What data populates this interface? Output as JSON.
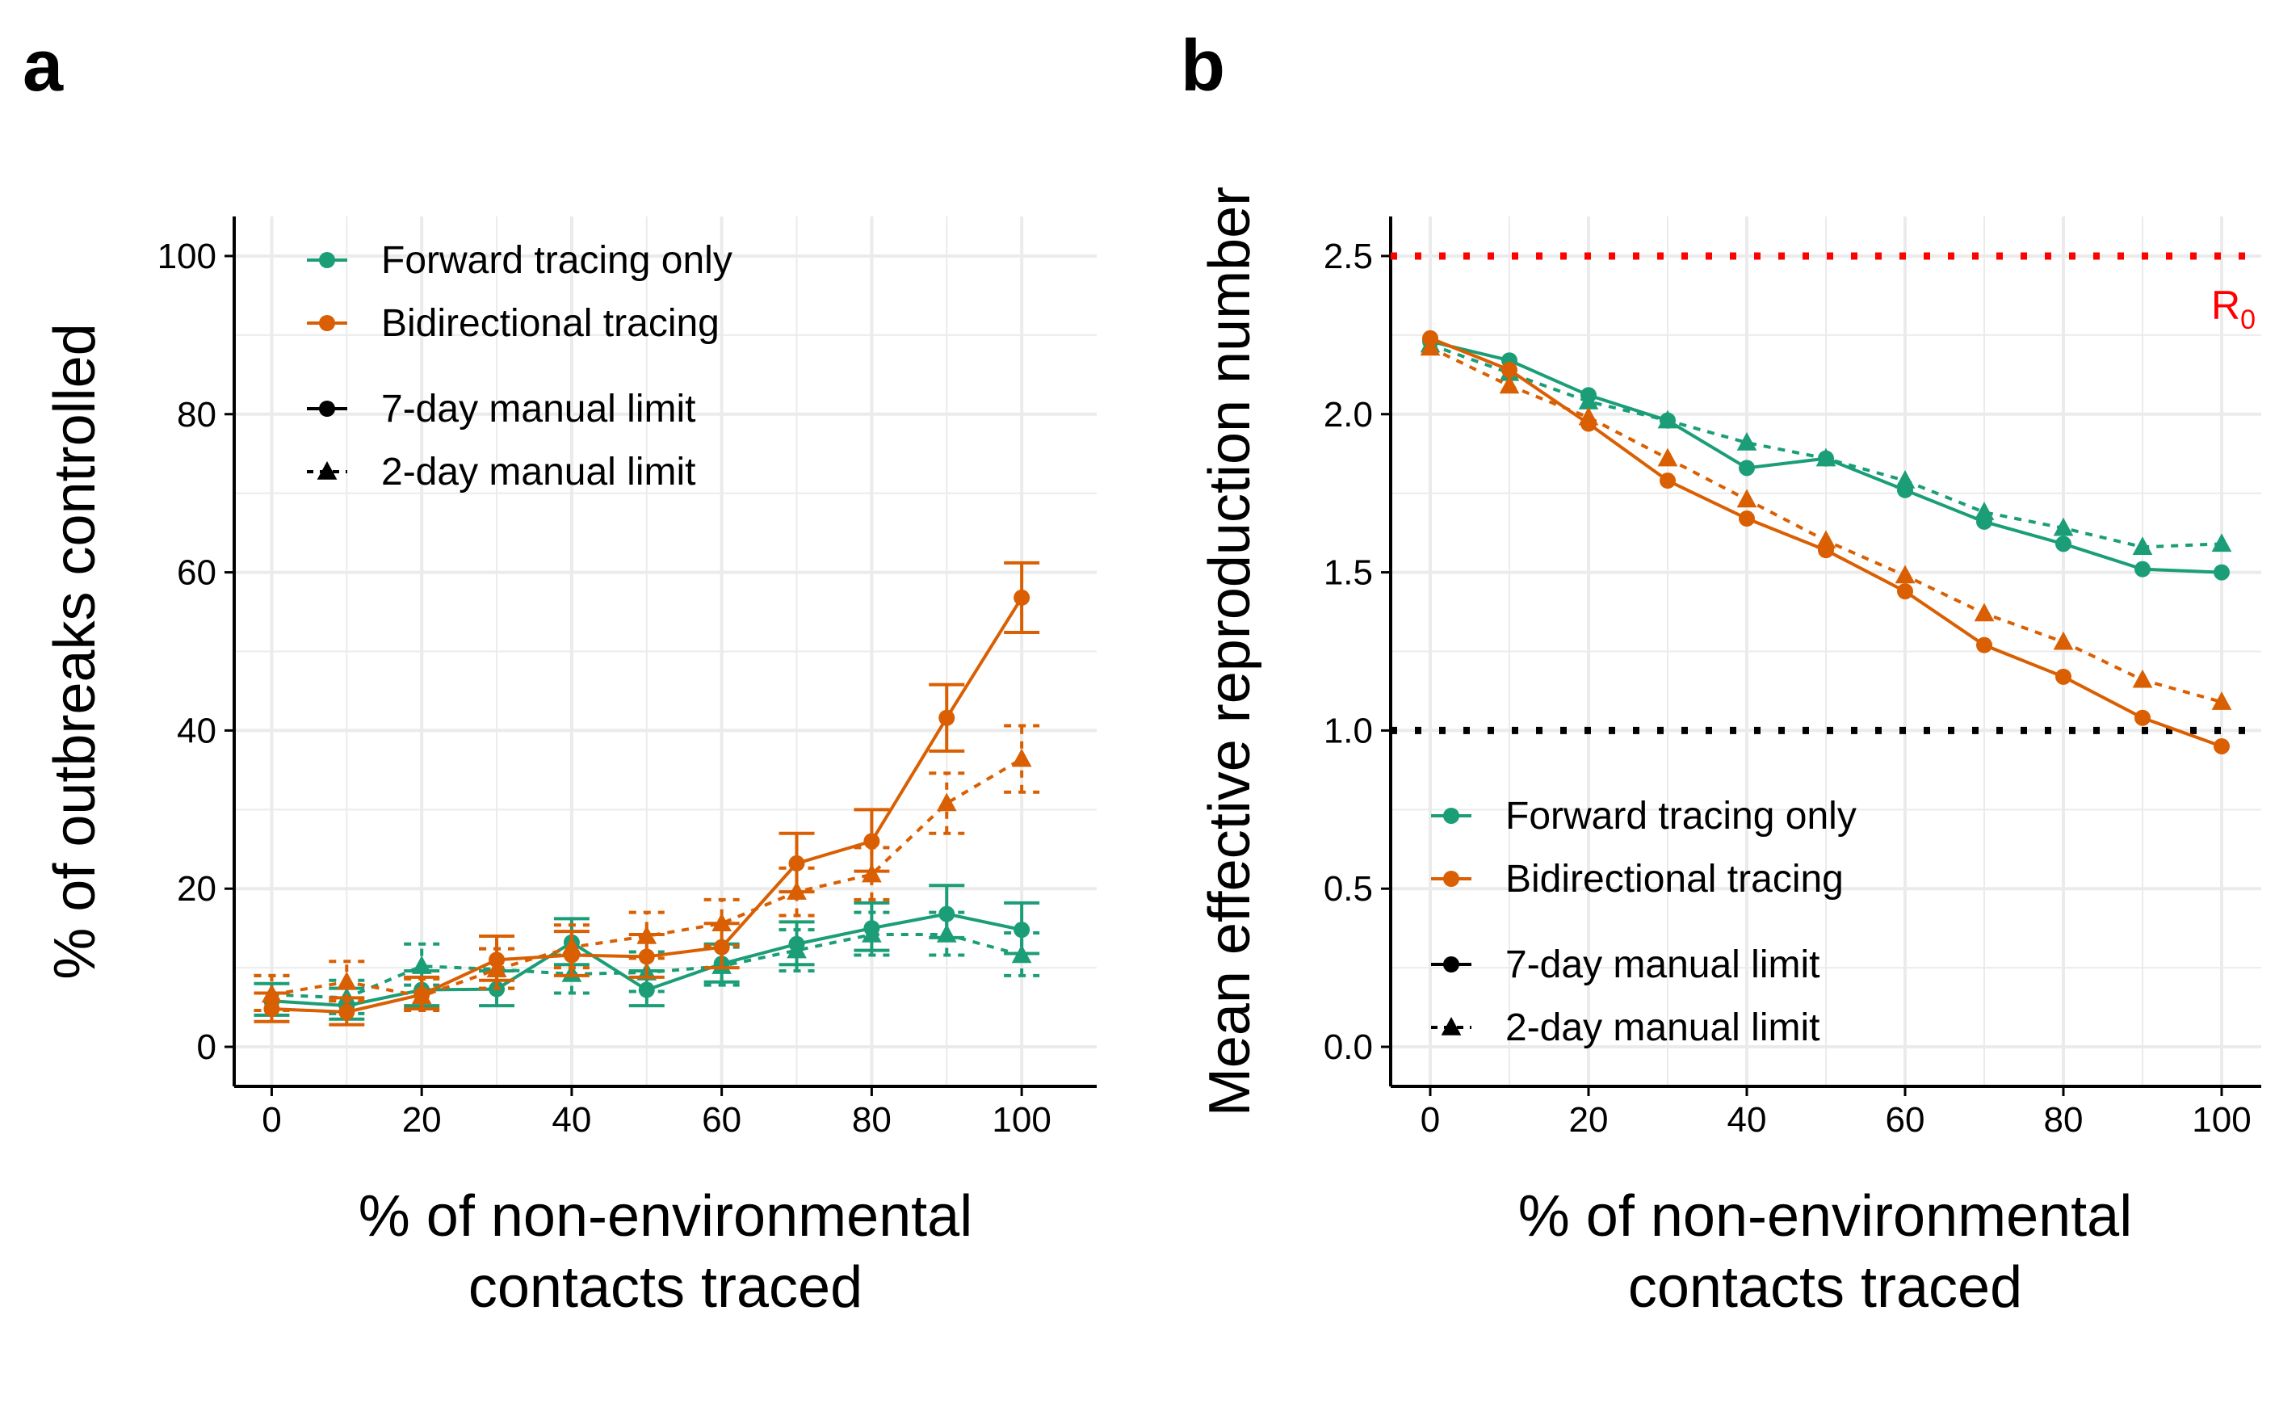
{
  "colors": {
    "forward": "#1b9e77",
    "bidirectional": "#d95f02",
    "r0_line": "#ff0000",
    "threshold_line": "#000000",
    "grid": "#ebebeb",
    "axis": "#000000"
  },
  "chart_data": [
    {
      "panel_label": "a",
      "type": "line",
      "title": "",
      "xlabel": [
        "% of non-environmental",
        "contacts traced"
      ],
      "ylabel": "% of outbreaks controlled",
      "xlim": [
        -5,
        110
      ],
      "ylim": [
        -5,
        105
      ],
      "xticks": [
        0,
        20,
        40,
        60,
        80,
        100
      ],
      "yticks": [
        0,
        20,
        40,
        60,
        80,
        100
      ],
      "xtick_labels": [
        "0",
        "20",
        "40",
        "60",
        "80",
        "100"
      ],
      "ytick_labels": [
        "0",
        "20",
        "40",
        "60",
        "80",
        "100"
      ],
      "grid": true,
      "error_bars": true,
      "legend": {
        "position": "top-left",
        "color_entries": [
          {
            "label": "Forward tracing only",
            "color_key": "forward"
          },
          {
            "label": "Bidirectional tracing",
            "color_key": "bidirectional"
          }
        ],
        "style_entries": [
          {
            "label": "7-day manual limit",
            "marker": "circle",
            "dash": "solid"
          },
          {
            "label": "2-day manual limit",
            "marker": "triangle",
            "dash": "dotted"
          }
        ]
      },
      "x": [
        0,
        10,
        20,
        30,
        40,
        50,
        60,
        70,
        80,
        90,
        100
      ],
      "series": [
        {
          "color_key": "forward",
          "manual_limit": "7-day",
          "marker": "circle",
          "dash": "solid",
          "values": [
            5.8,
            5.2,
            7.2,
            7.3,
            13.2,
            7.2,
            10.5,
            13.0,
            15.0,
            16.8,
            14.8
          ],
          "err_low": [
            4.0,
            3.5,
            5.2,
            5.2,
            10.4,
            5.2,
            8.2,
            10.4,
            12.2,
            13.8,
            11.8
          ],
          "err_high": [
            8.0,
            7.4,
            9.6,
            9.6,
            16.2,
            9.6,
            13.0,
            15.8,
            18.2,
            20.4,
            18.2
          ]
        },
        {
          "color_key": "forward",
          "manual_limit": "2-day",
          "marker": "triangle",
          "dash": "dotted",
          "values": [
            6.6,
            6.2,
            10.2,
            9.8,
            9.2,
            9.4,
            10.2,
            12.2,
            14.2,
            14.2,
            11.6
          ],
          "err_low": [
            4.6,
            4.2,
            7.8,
            7.4,
            6.8,
            7.0,
            7.8,
            9.6,
            11.6,
            11.6,
            9.0
          ],
          "err_high": [
            9.0,
            8.4,
            13.0,
            12.4,
            11.6,
            12.0,
            12.6,
            14.8,
            17.0,
            17.0,
            14.4
          ]
        },
        {
          "color_key": "bidirectional",
          "manual_limit": "7-day",
          "marker": "circle",
          "dash": "solid",
          "values": [
            4.8,
            4.4,
            6.6,
            11.0,
            11.6,
            11.4,
            12.6,
            23.2,
            26.0,
            41.6,
            56.8
          ],
          "err_low": [
            3.2,
            2.8,
            4.8,
            8.4,
            9.0,
            8.8,
            10.0,
            19.6,
            22.2,
            37.4,
            52.4
          ],
          "err_high": [
            6.8,
            6.2,
            8.8,
            14.0,
            14.6,
            14.2,
            15.6,
            27.0,
            30.0,
            45.8,
            61.2
          ]
        },
        {
          "color_key": "bidirectional",
          "manual_limit": "2-day",
          "marker": "triangle",
          "dash": "dotted",
          "values": [
            6.6,
            8.2,
            6.4,
            9.8,
            12.6,
            14.0,
            15.6,
            19.6,
            21.8,
            30.8,
            36.4
          ],
          "err_low": [
            4.6,
            5.8,
            4.6,
            7.4,
            10.0,
            11.2,
            12.8,
            16.6,
            18.6,
            27.0,
            32.2
          ],
          "err_high": [
            9.0,
            10.8,
            8.6,
            12.4,
            15.4,
            17.0,
            18.6,
            22.6,
            25.2,
            34.6,
            40.6
          ]
        }
      ]
    },
    {
      "panel_label": "b",
      "type": "line",
      "title": "",
      "xlabel": [
        "% of non-environmental",
        "contacts traced"
      ],
      "ylabel": "Mean effective reproduction number",
      "xlim": [
        -5,
        105
      ],
      "ylim": [
        -0.125,
        2.625
      ],
      "xticks": [
        0,
        20,
        40,
        60,
        80,
        100
      ],
      "yticks": [
        0.0,
        0.5,
        1.0,
        1.5,
        2.0,
        2.5
      ],
      "xtick_labels": [
        "0",
        "20",
        "40",
        "60",
        "80",
        "100"
      ],
      "ytick_labels": [
        "0.0",
        "0.5",
        "1.0",
        "1.5",
        "2.0",
        "2.5"
      ],
      "grid": true,
      "error_bars": false,
      "reference_lines": [
        {
          "y": 2.5,
          "color_key": "r0_line",
          "label": "R",
          "label_sub": "0",
          "dash": "dotted"
        },
        {
          "y": 1.0,
          "color_key": "threshold_line",
          "label": "",
          "dash": "dotted"
        }
      ],
      "legend": {
        "position": "bottom-left",
        "color_entries": [
          {
            "label": "Forward tracing only",
            "color_key": "forward"
          },
          {
            "label": "Bidirectional tracing",
            "color_key": "bidirectional"
          }
        ],
        "style_entries": [
          {
            "label": "7-day manual limit",
            "marker": "circle",
            "dash": "solid"
          },
          {
            "label": "2-day manual limit",
            "marker": "triangle",
            "dash": "dotted"
          }
        ]
      },
      "x": [
        0,
        10,
        20,
        30,
        40,
        50,
        60,
        70,
        80,
        90,
        100
      ],
      "series": [
        {
          "color_key": "forward",
          "manual_limit": "7-day",
          "marker": "circle",
          "dash": "solid",
          "values": [
            2.23,
            2.17,
            2.06,
            1.98,
            1.83,
            1.86,
            1.76,
            1.66,
            1.59,
            1.51,
            1.5
          ]
        },
        {
          "color_key": "forward",
          "manual_limit": "2-day",
          "marker": "triangle",
          "dash": "dotted",
          "values": [
            2.22,
            2.13,
            2.04,
            1.98,
            1.91,
            1.86,
            1.79,
            1.69,
            1.64,
            1.58,
            1.59
          ]
        },
        {
          "color_key": "bidirectional",
          "manual_limit": "7-day",
          "marker": "circle",
          "dash": "solid",
          "values": [
            2.24,
            2.14,
            1.97,
            1.79,
            1.67,
            1.57,
            1.44,
            1.27,
            1.17,
            1.04,
            0.95
          ]
        },
        {
          "color_key": "bidirectional",
          "manual_limit": "2-day",
          "marker": "triangle",
          "dash": "dotted",
          "values": [
            2.21,
            2.09,
            1.99,
            1.86,
            1.73,
            1.6,
            1.49,
            1.37,
            1.28,
            1.16,
            1.09
          ]
        }
      ]
    }
  ]
}
